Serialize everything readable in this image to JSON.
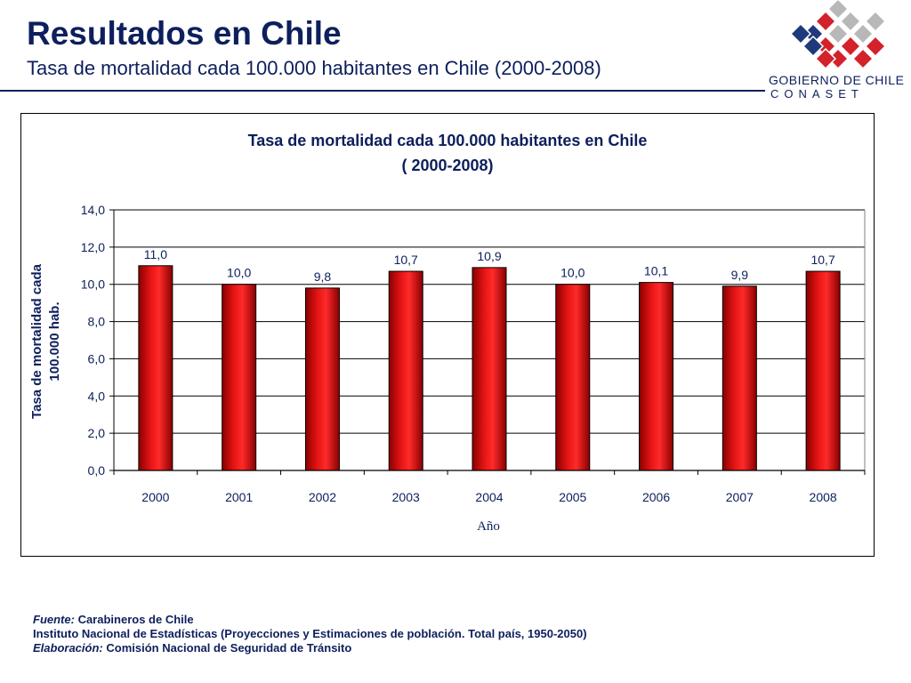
{
  "header": {
    "title": "Resultados en Chile",
    "subtitle": "Tasa de mortalidad cada 100.000 habitantes en Chile (2000-2008)"
  },
  "logo": {
    "line1": "GOBIERNO DE CHILE",
    "line2": "CONASET"
  },
  "colors": {
    "title": "#0d1f5c",
    "bar": "#e01010",
    "bar_dark": "#7a0000",
    "logo_blue": "#1f3a7a",
    "logo_red": "#d3222a",
    "logo_grey": "#b8b8b8"
  },
  "chart_data": {
    "type": "bar",
    "title_line1": "Tasa de mortalidad cada 100.000 habitantes en Chile",
    "title_line2": "( 2000-2008)",
    "xlabel": "Año",
    "ylabel_line1": "Tasa de mortalidad cada",
    "ylabel_line2": "100.000 hab.",
    "categories": [
      "2000",
      "2001",
      "2002",
      "2003",
      "2004",
      "2005",
      "2006",
      "2007",
      "2008"
    ],
    "values": [
      11.0,
      10.0,
      9.8,
      10.7,
      10.9,
      10.0,
      10.1,
      9.9,
      10.7
    ],
    "value_labels": [
      "11,0",
      "10,0",
      "9,8",
      "10,7",
      "10,9",
      "10,0",
      "10,1",
      "9,9",
      "10,7"
    ],
    "ylim": [
      0,
      14
    ],
    "yticks": [
      0,
      2,
      4,
      6,
      8,
      10,
      12,
      14
    ],
    "ytick_labels": [
      "0,0",
      "2,0",
      "4,0",
      "6,0",
      "8,0",
      "10,0",
      "12,0",
      "14,0"
    ],
    "grid": true,
    "legend": "none"
  },
  "footer": {
    "fuente_label": "Fuente:",
    "fuente_text": " Carabineros de Chile",
    "line2": "Instituto Nacional de Estadísticas (Proyecciones y Estimaciones de población. Total país, 1950-2050)",
    "elab_label": "Elaboración:",
    "elab_text": " Comisión Nacional de Seguridad de Tránsito"
  }
}
